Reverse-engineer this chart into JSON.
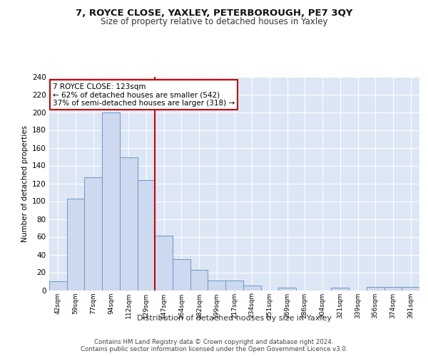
{
  "title1": "7, ROYCE CLOSE, YAXLEY, PETERBOROUGH, PE7 3QY",
  "title2": "Size of property relative to detached houses in Yaxley",
  "xlabel": "Distribution of detached houses by size in Yaxley",
  "ylabel": "Number of detached properties",
  "categories": [
    "42sqm",
    "59sqm",
    "77sqm",
    "94sqm",
    "112sqm",
    "129sqm",
    "147sqm",
    "164sqm",
    "182sqm",
    "199sqm",
    "217sqm",
    "234sqm",
    "251sqm",
    "269sqm",
    "286sqm",
    "304sqm",
    "321sqm",
    "339sqm",
    "356sqm",
    "374sqm",
    "391sqm"
  ],
  "values": [
    10,
    103,
    127,
    200,
    149,
    124,
    61,
    35,
    23,
    11,
    11,
    5,
    0,
    3,
    0,
    0,
    3,
    0,
    4,
    4,
    4
  ],
  "bar_color": "#ccd9ee",
  "bar_edge_color": "#6b96c8",
  "background_color": "#dce6f5",
  "grid_color": "#ffffff",
  "vline_x": 5.5,
  "vline_color": "#cc0000",
  "annotation_line1": "7 ROYCE CLOSE: 123sqm",
  "annotation_line2": "← 62% of detached houses are smaller (542)",
  "annotation_line3": "37% of semi-detached houses are larger (318) →",
  "annotation_box_color": "#ffffff",
  "annotation_box_edge": "#cc0000",
  "footer": "Contains HM Land Registry data © Crown copyright and database right 2024.\nContains public sector information licensed under the Open Government Licence v3.0.",
  "ylim": [
    0,
    240
  ],
  "yticks": [
    0,
    20,
    40,
    60,
    80,
    100,
    120,
    140,
    160,
    180,
    200,
    220,
    240
  ]
}
